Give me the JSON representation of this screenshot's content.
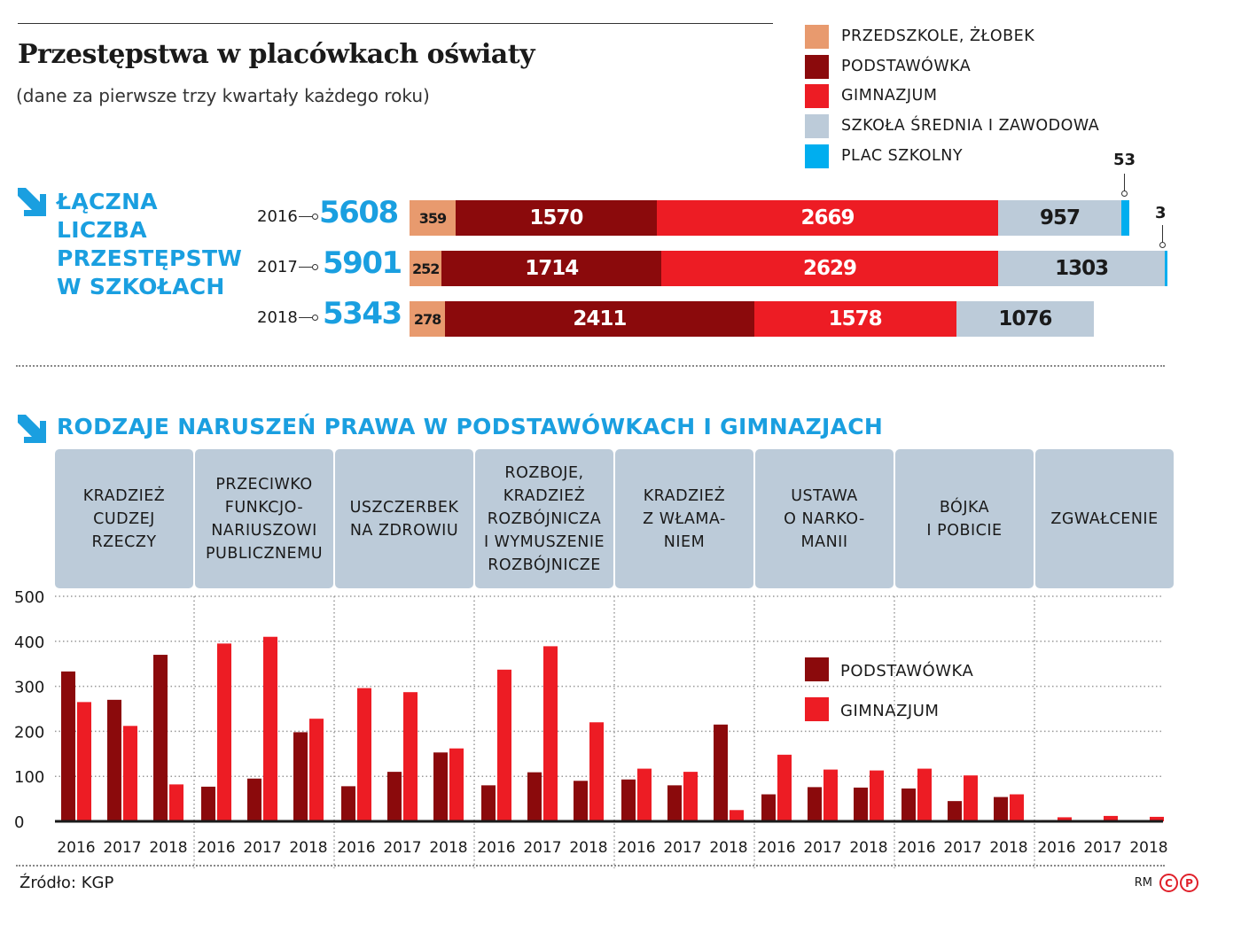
{
  "title": "Przestępstwa w placówkach oświaty",
  "subtitle": "(dane za pierwsze trzy kwartały każdego roku)",
  "legend": [
    {
      "label": "PRZEDSZKOLE, ŻŁOBEK",
      "color": "#e89a6e"
    },
    {
      "label": "PODSTAWÓWKA",
      "color": "#8b0a0c"
    },
    {
      "label": "GIMNAZJUM",
      "color": "#ed1c24"
    },
    {
      "label": "SZKOŁA ŚREDNIA I ZAWODOWA",
      "color": "#bccbd9"
    },
    {
      "label": "PLAC SZKOLNY",
      "color": "#00aeef"
    }
  ],
  "section1_heading": [
    "ŁĄCZNA",
    "LICZBA",
    "PRZESTĘPSTW",
    "W SZKOŁACH"
  ],
  "section2_heading": "RODZAJE NARUSZEŃ PRAWA W PODSTAWÓWKACH I GIMNAZJACH",
  "chart_data": [
    {
      "type": "bar",
      "stacked": true,
      "orientation": "horizontal",
      "categories": [
        "2016",
        "2017",
        "2018"
      ],
      "totals": [
        "5608",
        "5901",
        "5343"
      ],
      "series": [
        {
          "name": "PRZEDSZKOLE, ŻŁOBEK",
          "values": [
            359,
            252,
            278
          ],
          "color": "#e89a6e"
        },
        {
          "name": "PODSTAWÓWKA",
          "values": [
            1570,
            1714,
            2411
          ],
          "color": "#8b0a0c"
        },
        {
          "name": "GIMNAZJUM",
          "values": [
            2669,
            2629,
            1578
          ],
          "color": "#ed1c24"
        },
        {
          "name": "SZKOŁA ŚREDNIA I ZAWODOWA",
          "values": [
            957,
            1303,
            1076
          ],
          "color": "#bccbd9"
        },
        {
          "name": "PLAC SZKOLNY",
          "values": [
            53,
            3,
            0
          ],
          "color": "#00aeef"
        }
      ],
      "callouts": [
        "53",
        "3"
      ]
    },
    {
      "type": "bar",
      "groups": [
        "KRADZIEŻ\nCUDZEJ\nRZECZY",
        "PRZECIWKO\nFUNKCJO-\nNARIUSZOWI\nPUBLICZNEMU",
        "USZCZERBEK\nNA ZDROWIU",
        "ROZBOJE,\nKRADZIEŻ\nROZBÓJNICZA\nI WYMUSZENIE\nROZBÓJNICZE",
        "KRADZIEŻ\nZ WŁAMA-\nNIEM",
        "USTAWA\nO NARKO-\nMANII",
        "BÓJKA\nI POBICIE",
        "ZGWAŁCENIE"
      ],
      "categories": [
        "2016",
        "2017",
        "2018"
      ],
      "series": [
        {
          "name": "PODSTAWÓWKA",
          "color": "#8b0a0c",
          "values": [
            [
              333,
              270,
              370
            ],
            [
              77,
              95,
              198
            ],
            [
              78,
              110,
              153
            ],
            [
              80,
              109,
              90
            ],
            [
              93,
              80,
              215
            ],
            [
              60,
              76,
              75
            ],
            [
              73,
              45,
              54
            ],
            [
              3,
              2,
              2
            ]
          ]
        },
        {
          "name": "GIMNAZJUM",
          "color": "#ed1c24",
          "values": [
            [
              265,
              212,
              82
            ],
            [
              395,
              410,
              228
            ],
            [
              296,
              287,
              162
            ],
            [
              337,
              389,
              220
            ],
            [
              117,
              110,
              25
            ],
            [
              148,
              115,
              113
            ],
            [
              117,
              102,
              60
            ],
            [
              9,
              12,
              10
            ]
          ]
        }
      ],
      "yticks": [
        "500",
        "400",
        "300",
        "200",
        "100",
        "0"
      ],
      "ylim": [
        0,
        500
      ],
      "grid": true,
      "legend_position": "right"
    }
  ],
  "source": "Źródło: KGP",
  "credit": {
    "initials": "RM",
    "c": "C",
    "p": "P"
  }
}
